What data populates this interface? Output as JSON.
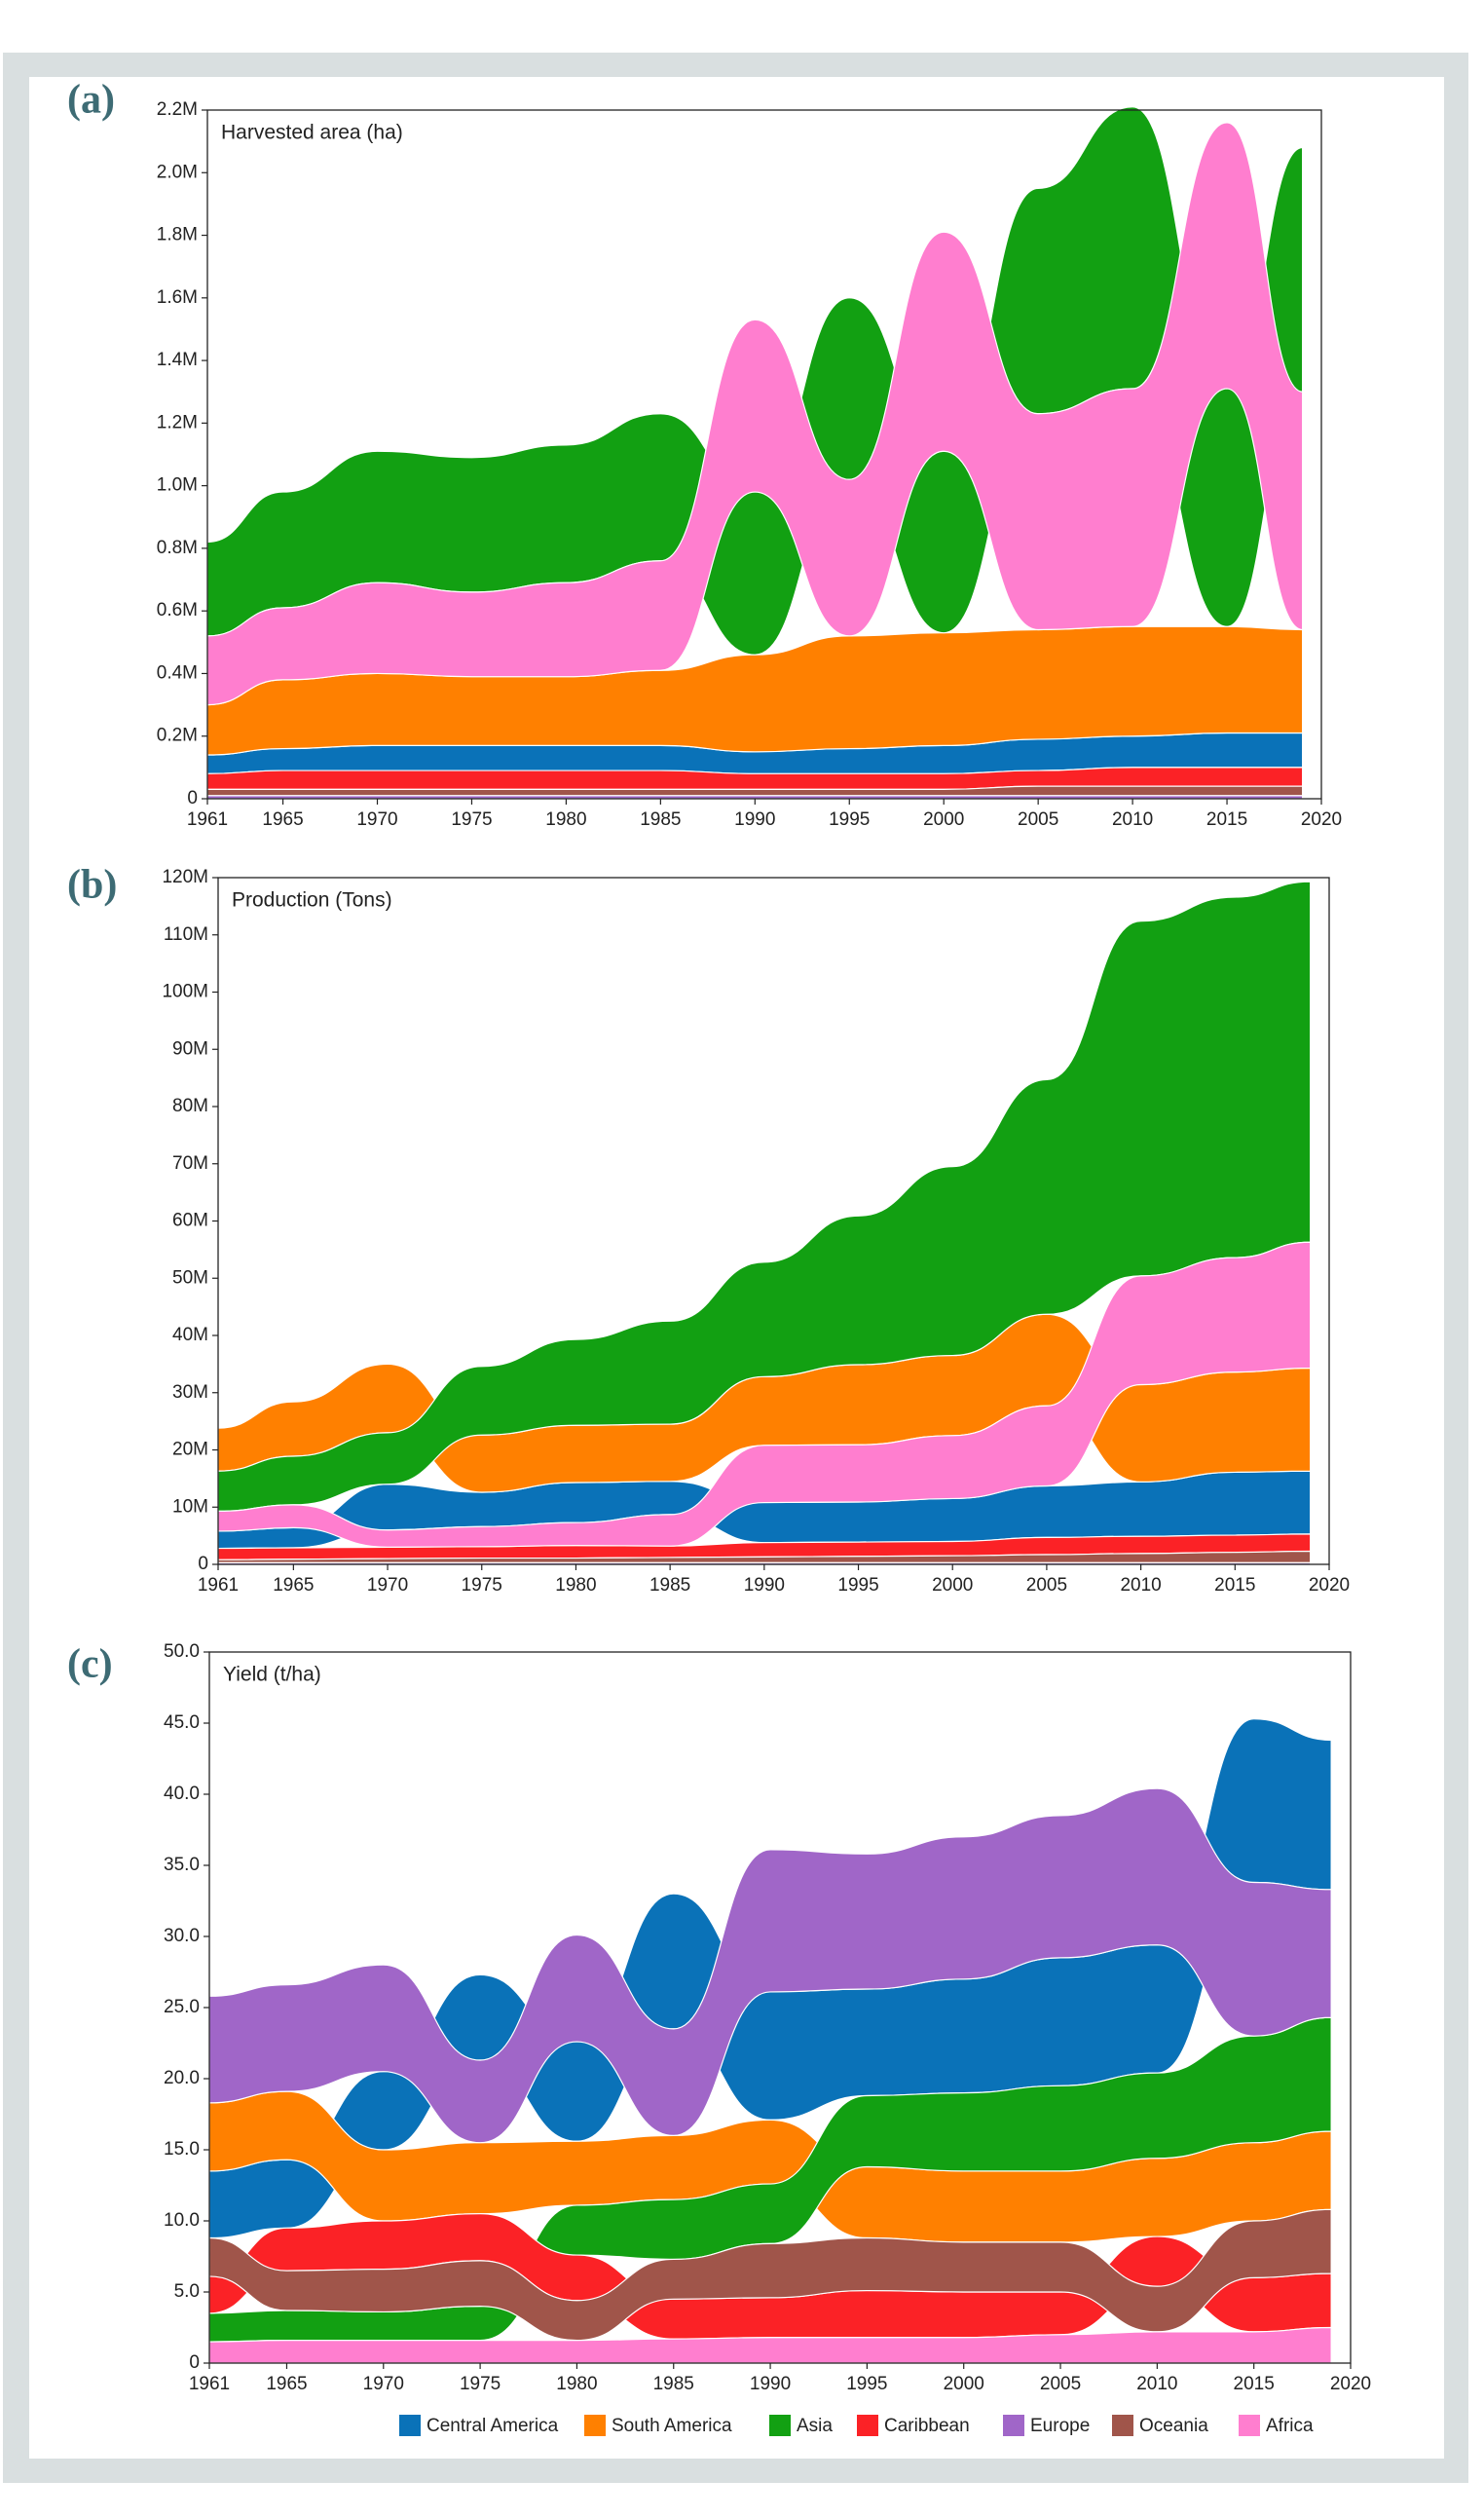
{
  "chart_data": [
    {
      "type": "area",
      "panel": "(a)",
      "title": "Harvested area (ha)",
      "x": [
        1961,
        1965,
        1970,
        1975,
        1980,
        1985,
        1990,
        1995,
        2000,
        2005,
        2010,
        2015,
        2019
      ],
      "xlim": [
        1961,
        2020
      ],
      "xticks": [
        1961,
        1965,
        1970,
        1975,
        1980,
        1985,
        1990,
        1995,
        2000,
        2005,
        2010,
        2015,
        2020
      ],
      "ylim": [
        0,
        2200000
      ],
      "yticks": [
        0,
        {
          "value": 200000,
          "label": "0.2M"
        },
        {
          "value": 400000,
          "label": "0.4M"
        },
        {
          "value": 600000,
          "label": "0.6M"
        },
        {
          "value": 800000,
          "label": "0.8M"
        },
        {
          "value": 1000000,
          "label": "1.0M"
        },
        {
          "value": 1200000,
          "label": "1.2M"
        },
        {
          "value": 1400000,
          "label": "1.4M"
        },
        {
          "value": 1600000,
          "label": "1.6M"
        },
        {
          "value": 1800000,
          "label": "1.8M"
        },
        {
          "value": 2000000,
          "label": "2.0M"
        },
        {
          "value": 2200000,
          "label": "2.2M"
        }
      ],
      "series": [
        {
          "name": "Central America",
          "color": "#0a72b8",
          "values": [
            60000,
            70000,
            80000,
            80000,
            80000,
            80000,
            70000,
            80000,
            90000,
            100000,
            100000,
            110000,
            110000
          ]
        },
        {
          "name": "South America",
          "color": "#ff8000",
          "values": [
            160000,
            220000,
            230000,
            220000,
            220000,
            240000,
            310000,
            360000,
            360000,
            350000,
            350000,
            340000,
            330000
          ]
        },
        {
          "name": "Asia",
          "color": "#12a012",
          "values": [
            300000,
            370000,
            420000,
            430000,
            440000,
            470000,
            520000,
            580000,
            580000,
            720000,
            900000,
            760000,
            780000
          ]
        },
        {
          "name": "Caribbean",
          "color": "#fb2226",
          "values": [
            50000,
            60000,
            60000,
            60000,
            60000,
            60000,
            50000,
            50000,
            50000,
            50000,
            60000,
            60000,
            60000
          ]
        },
        {
          "name": "Europe",
          "color": "#a066c8",
          "values": [
            10000,
            10000,
            10000,
            10000,
            10000,
            10000,
            10000,
            10000,
            10000,
            10000,
            10000,
            10000,
            10000
          ]
        },
        {
          "name": "Oceania",
          "color": "#a0554a",
          "values": [
            20000,
            20000,
            20000,
            20000,
            20000,
            20000,
            20000,
            20000,
            20000,
            30000,
            30000,
            30000,
            30000
          ]
        },
        {
          "name": "Africa",
          "color": "#ff7ecf",
          "values": [
            220000,
            230000,
            290000,
            270000,
            300000,
            350000,
            550000,
            500000,
            700000,
            690000,
            760000,
            850000,
            760000
          ]
        }
      ]
    },
    {
      "type": "area",
      "panel": "(b)",
      "title": "Production (Tons)",
      "x": [
        1961,
        1965,
        1970,
        1975,
        1980,
        1985,
        1990,
        1995,
        2000,
        2005,
        2010,
        2015,
        2019
      ],
      "xlim": [
        1961,
        2020
      ],
      "xticks": [
        1961,
        1965,
        1970,
        1975,
        1980,
        1985,
        1990,
        1995,
        2000,
        2005,
        2010,
        2015,
        2020
      ],
      "ylim": [
        0,
        120000000
      ],
      "yticks": [
        0,
        {
          "value": 10000000,
          "label": "10M"
        },
        {
          "value": 20000000,
          "label": "20M"
        },
        {
          "value": 30000000,
          "label": "30M"
        },
        {
          "value": 40000000,
          "label": "40M"
        },
        {
          "value": 50000000,
          "label": "50M"
        },
        {
          "value": 60000000,
          "label": "60M"
        },
        {
          "value": 70000000,
          "label": "70M"
        },
        {
          "value": 80000000,
          "label": "80M"
        },
        {
          "value": 90000000,
          "label": "90M"
        },
        {
          "value": 100000000,
          "label": "100M"
        },
        {
          "value": 110000000,
          "label": "110M"
        },
        {
          "value": 120000000,
          "label": "120M"
        }
      ],
      "series": [
        {
          "name": "Central America",
          "color": "#0a72b8",
          "values": [
            3000000,
            3500000,
            8000000,
            6000000,
            7000000,
            5800000,
            7000000,
            7000000,
            7500000,
            9000000,
            9500000,
            11000000,
            11000000
          ]
        },
        {
          "name": "South America",
          "color": "#ff8000",
          "values": [
            7500000,
            9500000,
            12000000,
            10000000,
            10000000,
            10000000,
            12000000,
            14000000,
            14000000,
            16000000,
            17000000,
            17500000,
            18000000
          ]
        },
        {
          "name": "Asia",
          "color": "#12a012",
          "values": [
            7000000,
            8500000,
            9000000,
            12000000,
            15000000,
            18000000,
            20000000,
            26000000,
            33000000,
            41000000,
            62000000,
            63000000,
            63000000
          ]
        },
        {
          "name": "Caribbean",
          "color": "#fb2226",
          "values": [
            2000000,
            2000000,
            2000000,
            2000000,
            2200000,
            2000000,
            2500000,
            2500000,
            2500000,
            3000000,
            3000000,
            3000000,
            3000000
          ]
        },
        {
          "name": "Europe",
          "color": "#a066c8",
          "values": [
            300000,
            300000,
            300000,
            300000,
            300000,
            300000,
            300000,
            300000,
            300000,
            300000,
            300000,
            300000,
            300000
          ]
        },
        {
          "name": "Oceania",
          "color": "#a0554a",
          "values": [
            500000,
            600000,
            700000,
            800000,
            800000,
            900000,
            1000000,
            1100000,
            1200000,
            1400000,
            1600000,
            1800000,
            2000000
          ]
        },
        {
          "name": "Africa",
          "color": "#ff7ecf",
          "values": [
            3500000,
            4000000,
            3000000,
            3500000,
            4000000,
            5500000,
            10000000,
            10000000,
            11000000,
            14000000,
            19000000,
            20000000,
            22000000
          ]
        }
      ]
    },
    {
      "type": "area",
      "panel": "(c)",
      "title": "Yield (t/ha)",
      "x": [
        1961,
        1965,
        1970,
        1975,
        1980,
        1985,
        1990,
        1995,
        2000,
        2005,
        2010,
        2015,
        2019
      ],
      "xlim": [
        1961,
        2020
      ],
      "xticks": [
        1961,
        1965,
        1970,
        1975,
        1980,
        1985,
        1990,
        1995,
        2000,
        2005,
        2010,
        2015,
        2020
      ],
      "ylim": [
        0,
        50
      ],
      "yticks": [
        0,
        {
          "value": 5,
          "label": "5.0"
        },
        {
          "value": 10,
          "label": "10.0"
        },
        {
          "value": 15,
          "label": "15.0"
        },
        {
          "value": 20,
          "label": "20.0"
        },
        {
          "value": 25,
          "label": "25.0"
        },
        {
          "value": 30,
          "label": "30.0"
        },
        {
          "value": 35,
          "label": "35.0"
        },
        {
          "value": 40,
          "label": "40.0"
        },
        {
          "value": 45,
          "label": "45.0"
        },
        {
          "value": 50,
          "label": "50.0"
        }
      ],
      "series": [
        {
          "name": "Central America",
          "color": "#0a72b8",
          "values": [
            4.7,
            4.8,
            5.5,
            6,
            7,
            9.5,
            9,
            7.5,
            8,
            9,
            9,
            11.5,
            10.5
          ]
        },
        {
          "name": "South America",
          "color": "#ff8000",
          "values": [
            4.8,
            4.8,
            5,
            5,
            4.5,
            4.5,
            4.5,
            5,
            5,
            5,
            5.5,
            5.5,
            5.5
          ]
        },
        {
          "name": "Asia",
          "color": "#12a012",
          "values": [
            2,
            2.1,
            2,
            2.4,
            3.5,
            4.2,
            4.2,
            5,
            5.5,
            6,
            6,
            7.5,
            8
          ]
        },
        {
          "name": "Caribbean",
          "color": "#fb2226",
          "values": [
            2.6,
            3,
            3.4,
            3.3,
            3.2,
            2.8,
            2.8,
            3.3,
            3.2,
            3,
            3.5,
            3.8,
            3.8
          ]
        },
        {
          "name": "Europe",
          "color": "#a066c8",
          "values": [
            7.5,
            7.5,
            7.5,
            5.8,
            7.5,
            7.5,
            10,
            9.5,
            10,
            10,
            11,
            10.8,
            9
          ]
        },
        {
          "name": "Oceania",
          "color": "#a0554a",
          "values": [
            2.7,
            2.8,
            3,
            3.2,
            2.8,
            2.8,
            3.8,
            3.7,
            3.5,
            3.5,
            3.2,
            4,
            4.5
          ]
        },
        {
          "name": "Africa",
          "color": "#ff7ecf",
          "values": [
            1.5,
            1.6,
            1.6,
            1.6,
            1.6,
            1.7,
            1.8,
            1.8,
            1.8,
            2,
            2.2,
            2.2,
            2.5
          ]
        }
      ]
    }
  ]
}
